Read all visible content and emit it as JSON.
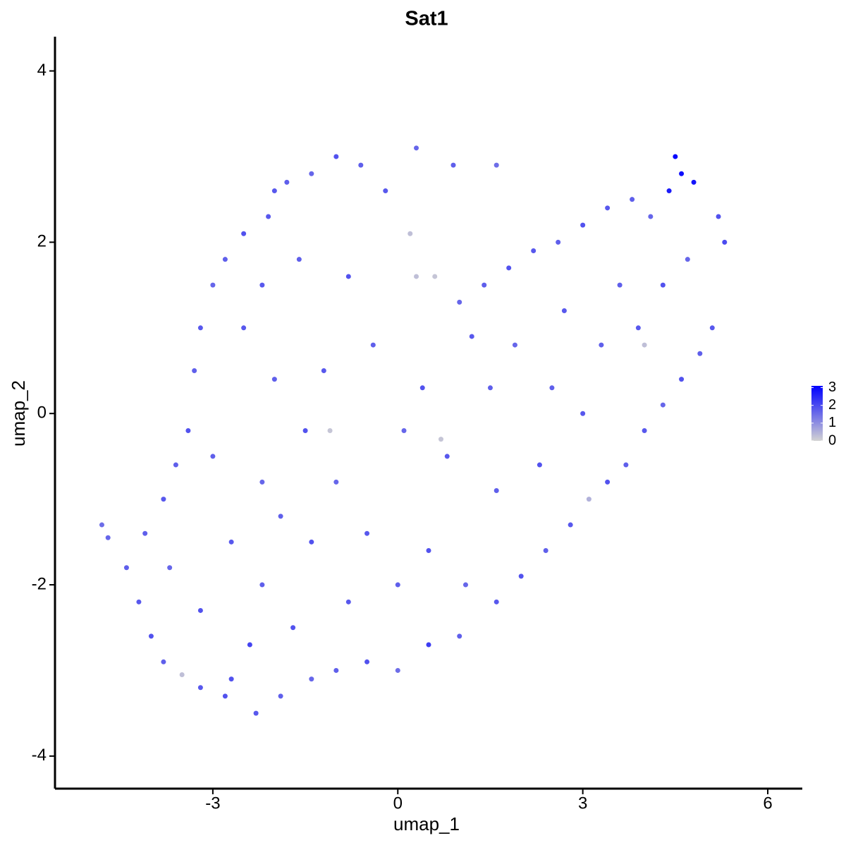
{
  "chart_data": {
    "type": "scatter",
    "title": "Sat1",
    "x_label": "umap_1",
    "y_label": "umap_2",
    "x": [
      -4.8,
      -4.7,
      -4.4,
      -4.2,
      -4.0,
      -3.8,
      -3.5,
      -3.2,
      -2.8,
      -2.3,
      -1.9,
      -1.4,
      -1.0,
      -0.5,
      0.0,
      0.5,
      1.0,
      1.1,
      1.6,
      2.0,
      2.4,
      2.8,
      3.1,
      3.4,
      3.7,
      4.0,
      4.3,
      4.6,
      4.9,
      5.1,
      5.3,
      5.2,
      4.8,
      4.5,
      4.6,
      4.4,
      4.1,
      3.8,
      3.4,
      3.0,
      2.6,
      2.2,
      1.8,
      1.4,
      1.0,
      0.6,
      0.2,
      -0.2,
      -0.6,
      -1.0,
      -1.4,
      -1.8,
      -2.1,
      -2.5,
      -2.8,
      -3.0,
      -3.2,
      -3.3,
      -3.4,
      -3.6,
      -3.8,
      -4.1,
      0.3,
      0.9,
      1.6,
      -2.5,
      -2.0,
      -1.5,
      -1.0,
      -0.5,
      0.0,
      0.5,
      -2.7,
      -2.2,
      -1.7,
      -2.4,
      -3.2,
      -3.0,
      -2.2,
      -1.2,
      -0.4,
      0.4,
      1.2,
      1.9,
      2.5,
      3.0,
      2.3,
      1.6,
      0.8,
      0.1,
      -0.8,
      -1.6,
      -2.2,
      0.3,
      3.6,
      3.9,
      4.3,
      4.7,
      3.3,
      2.7,
      1.5,
      -1.4,
      -0.8,
      -1.9,
      -3.7,
      -1.1,
      0.7,
      4.0,
      -2.7,
      -2.0
    ],
    "y": [
      -1.3,
      -1.45,
      -1.8,
      -2.2,
      -2.6,
      -2.9,
      -3.05,
      -3.2,
      -3.3,
      -3.5,
      -3.3,
      -3.1,
      -3.0,
      -2.9,
      -3.0,
      -2.7,
      -2.6,
      -2.0,
      -2.2,
      -1.9,
      -1.6,
      -1.3,
      -1.0,
      -0.8,
      -0.6,
      -0.2,
      0.1,
      0.4,
      0.7,
      1.0,
      2.0,
      2.3,
      2.7,
      3.0,
      2.8,
      2.6,
      2.3,
      2.5,
      2.4,
      2.2,
      2.0,
      1.9,
      1.7,
      1.5,
      1.3,
      1.6,
      2.1,
      2.6,
      2.9,
      3.0,
      2.8,
      2.7,
      2.3,
      2.1,
      1.8,
      1.5,
      1.0,
      0.5,
      -0.2,
      -0.6,
      -1.0,
      -1.4,
      3.1,
      2.9,
      2.9,
      1.0,
      0.4,
      -0.2,
      -0.8,
      -1.4,
      -2.0,
      -1.6,
      -1.5,
      -2.0,
      -2.5,
      -2.7,
      -2.3,
      -0.5,
      -0.8,
      0.5,
      0.8,
      0.3,
      0.9,
      0.8,
      0.3,
      0.0,
      -0.6,
      -0.9,
      -0.5,
      -0.2,
      1.6,
      1.8,
      1.5,
      1.6,
      1.5,
      1.0,
      1.5,
      1.8,
      0.8,
      1.2,
      0.3,
      -1.5,
      -2.2,
      -1.2,
      -1.8,
      -0.2,
      -0.3,
      0.8,
      -3.1,
      2.6
    ],
    "values": [
      1.5,
      1.6,
      1.7,
      1.8,
      1.9,
      1.7,
      0.3,
      1.8,
      1.9,
      1.8,
      1.7,
      1.6,
      1.7,
      1.9,
      1.5,
      2.2,
      1.7,
      1.6,
      1.8,
      1.9,
      1.7,
      1.8,
      0.5,
      1.9,
      1.7,
      1.8,
      1.6,
      1.9,
      1.7,
      1.8,
      2.0,
      1.9,
      2.8,
      3.0,
      2.9,
      2.7,
      1.6,
      1.7,
      1.8,
      1.9,
      1.7,
      1.8,
      1.9,
      1.7,
      1.6,
      0.2,
      0.3,
      1.8,
      1.7,
      1.9,
      1.6,
      1.7,
      1.8,
      1.9,
      1.7,
      1.6,
      1.8,
      1.7,
      1.9,
      1.7,
      1.8,
      1.7,
      1.6,
      1.7,
      1.5,
      1.8,
      1.7,
      1.9,
      1.6,
      1.8,
      1.7,
      1.9,
      1.8,
      1.7,
      1.9,
      2.1,
      1.9,
      1.7,
      1.6,
      1.8,
      1.7,
      1.9,
      1.8,
      1.6,
      1.7,
      1.8,
      1.9,
      1.7,
      1.8,
      1.6,
      1.9,
      1.7,
      1.8,
      0.3,
      1.7,
      1.8,
      1.9,
      1.6,
      1.7,
      1.8,
      1.7,
      1.9,
      1.8,
      1.7,
      1.6,
      0.2,
      0.2,
      0.3,
      1.9,
      1.8
    ],
    "xlim": [
      -5.56,
      6.56
    ],
    "ylim": [
      -4.38,
      4.4
    ],
    "xticks": [
      -3,
      0,
      3,
      6
    ],
    "yticks": [
      -4,
      -2,
      0,
      2,
      4
    ],
    "colorbar": {
      "low": "#d3d3d3",
      "high": "#0000ff",
      "lim": [
        0,
        3.1
      ],
      "ticks": [
        0,
        1,
        2,
        3
      ]
    }
  }
}
